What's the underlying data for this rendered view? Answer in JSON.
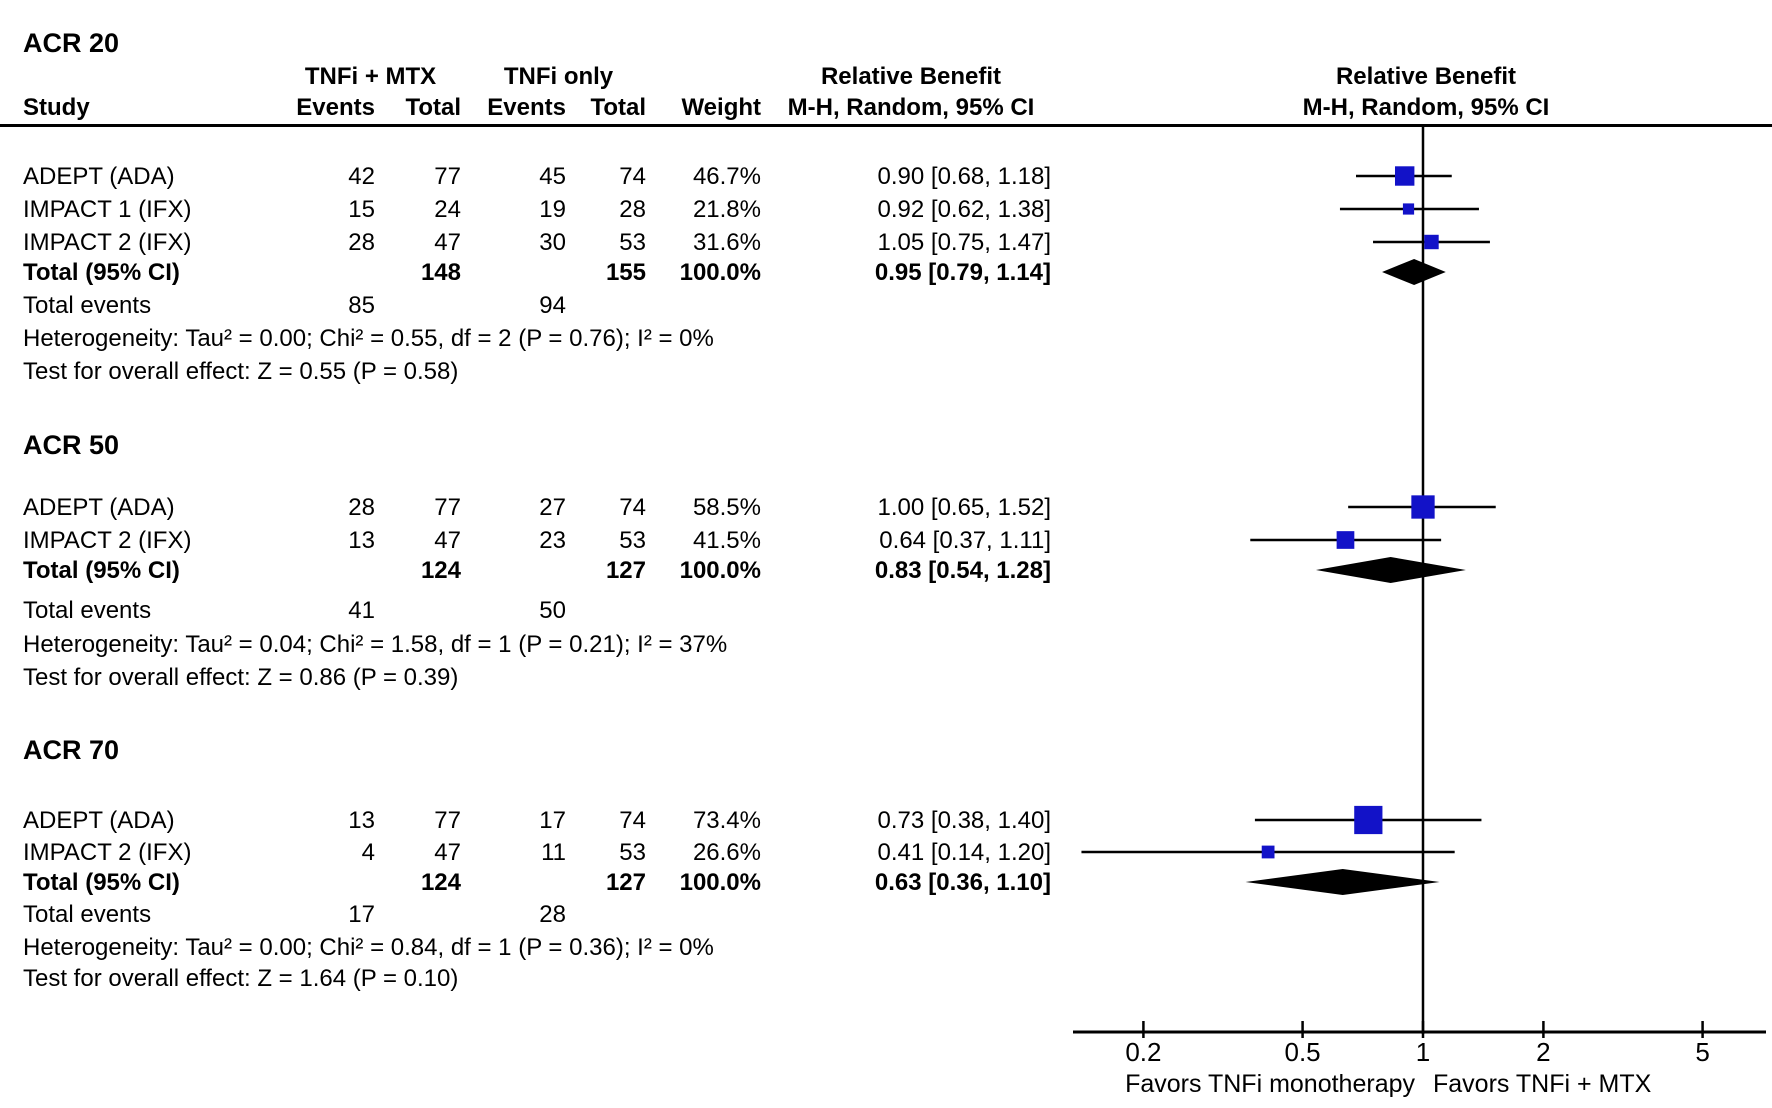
{
  "header": {
    "col_study": "Study",
    "group1_label": "TNFi + MTX",
    "group2_label": "TNFi only",
    "col_events": "Events",
    "col_total": "Total",
    "col_weight": "Weight",
    "effect_title": "Relative Benefit",
    "effect_subtitle": "M-H, Random, 95% CI",
    "plot_title": "Relative Benefit",
    "plot_subtitle": "M-H, Random, 95% CI"
  },
  "chart_data": {
    "type": "forest",
    "scale": "log",
    "x_ticks": [
      "0.2",
      "0.5",
      "1",
      "2",
      "5"
    ],
    "x_tick_values": [
      0.2,
      0.5,
      1,
      2,
      5
    ],
    "favors_left": "Favors TNFi monotherapy",
    "favors_right": "Favors TNFi + MTX",
    "square_color": "#1212C8",
    "diamond_color": "#000000",
    "sections": [
      {
        "title": "ACR 20",
        "studies": [
          {
            "name": "ADEPT (ADA)",
            "events1": "42",
            "total1": "77",
            "events2": "45",
            "total2": "74",
            "weight": "46.7%",
            "weight_pct": 46.7,
            "ci_label": "0.90 [0.68, 1.18]",
            "rr": 0.9,
            "lo": 0.68,
            "hi": 1.18
          },
          {
            "name": "IMPACT 1 (IFX)",
            "events1": "15",
            "total1": "24",
            "events2": "19",
            "total2": "28",
            "weight": "21.8%",
            "weight_pct": 21.8,
            "ci_label": "0.92 [0.62, 1.38]",
            "rr": 0.92,
            "lo": 0.62,
            "hi": 1.38
          },
          {
            "name": "IMPACT 2 (IFX)",
            "events1": "28",
            "total1": "47",
            "events2": "30",
            "total2": "53",
            "weight": "31.6%",
            "weight_pct": 31.6,
            "ci_label": "1.05 [0.75, 1.47]",
            "rr": 1.05,
            "lo": 0.75,
            "hi": 1.47
          }
        ],
        "total": {
          "label": "Total (95% CI)",
          "total1": "148",
          "total2": "155",
          "weight": "100.0%",
          "ci_label": "0.95 [0.79, 1.14]",
          "rr": 0.95,
          "lo": 0.79,
          "hi": 1.14
        },
        "total_events": {
          "label": "Total events",
          "events1": "85",
          "events2": "94"
        },
        "heterogeneity": "Heterogeneity: Tau² = 0.00; Chi² = 0.55, df = 2 (P = 0.76); I² = 0%",
        "overall_effect": "Test for overall effect: Z = 0.55 (P = 0.58)"
      },
      {
        "title": "ACR 50",
        "studies": [
          {
            "name": "ADEPT (ADA)",
            "events1": "28",
            "total1": "77",
            "events2": "27",
            "total2": "74",
            "weight": "58.5%",
            "weight_pct": 58.5,
            "ci_label": "1.00 [0.65, 1.52]",
            "rr": 1.0,
            "lo": 0.65,
            "hi": 1.52
          },
          {
            "name": "IMPACT 2 (IFX)",
            "events1": "13",
            "total1": "47",
            "events2": "23",
            "total2": "53",
            "weight": "41.5%",
            "weight_pct": 41.5,
            "ci_label": "0.64 [0.37, 1.11]",
            "rr": 0.64,
            "lo": 0.37,
            "hi": 1.11
          }
        ],
        "total": {
          "label": "Total (95% CI)",
          "total1": "124",
          "total2": "127",
          "weight": "100.0%",
          "ci_label": "0.83 [0.54, 1.28]",
          "rr": 0.83,
          "lo": 0.54,
          "hi": 1.28
        },
        "total_events": {
          "label": "Total events",
          "events1": "41",
          "events2": "50"
        },
        "heterogeneity": "Heterogeneity: Tau² = 0.04; Chi² = 1.58, df = 1 (P = 0.21); I² = 37%",
        "overall_effect": "Test for overall effect: Z = 0.86 (P = 0.39)"
      },
      {
        "title": "ACR 70",
        "studies": [
          {
            "name": "ADEPT (ADA)",
            "events1": "13",
            "total1": "77",
            "events2": "17",
            "total2": "74",
            "weight": "73.4%",
            "weight_pct": 73.4,
            "ci_label": "0.73 [0.38, 1.40]",
            "rr": 0.73,
            "lo": 0.38,
            "hi": 1.4
          },
          {
            "name": "IMPACT 2 (IFX)",
            "events1": "4",
            "total1": "47",
            "events2": "11",
            "total2": "53",
            "weight": "26.6%",
            "weight_pct": 26.6,
            "ci_label": "0.41 [0.14, 1.20]",
            "rr": 0.41,
            "lo": 0.14,
            "hi": 1.2
          }
        ],
        "total": {
          "label": "Total (95% CI)",
          "total1": "124",
          "total2": "127",
          "weight": "100.0%",
          "ci_label": "0.63 [0.36, 1.10]",
          "rr": 0.63,
          "lo": 0.36,
          "hi": 1.1
        },
        "total_events": {
          "label": "Total events",
          "events1": "17",
          "events2": "28"
        },
        "heterogeneity": "Heterogeneity: Tau² = 0.00; Chi² = 0.84, df = 1 (P = 0.36); I² = 0%",
        "overall_effect": "Test for overall effect: Z = 1.64 (P = 0.10)"
      }
    ]
  }
}
